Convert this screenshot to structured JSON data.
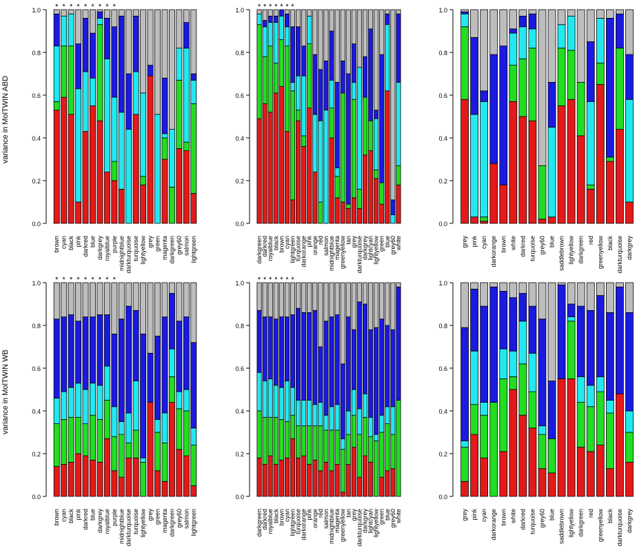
{
  "colors": {
    "red": "#e31a1a",
    "green": "#22dd22",
    "cyan": "#22e8f0",
    "blue": "#1a1ae0",
    "grey": "#bdbdbd",
    "edge": "#000000"
  },
  "ylabels": {
    "top": "variance in MolTWIN ABD",
    "bottom": "variance in MolTWIN WB"
  },
  "chart_data": [
    {
      "type": "bar",
      "stacked": true,
      "panel": "top-left",
      "ylim": [
        0,
        1
      ],
      "yticks": [
        "0.0",
        "0.2",
        "0.4",
        "0.6",
        "0.8",
        "1.0"
      ],
      "categories": [
        "brown",
        "cyan",
        "black",
        "pink",
        "darkred",
        "blue",
        "darkgrey",
        "royalblue",
        "purple",
        "midnightblue",
        "darkturquoise",
        "turquoise",
        "lightyellow",
        "grey",
        "green",
        "magenta",
        "darkgreen",
        "grey60",
        "salmon",
        "lightgreen"
      ],
      "stars": 9,
      "series": [
        {
          "color": "red",
          "values": [
            0.53,
            0.59,
            0.51,
            0.1,
            0.43,
            0.55,
            0.48,
            0.24,
            0.2,
            0.16,
            0.0,
            0.51,
            0.18,
            0.69,
            0.0,
            0.3,
            0.0,
            0.35,
            0.34,
            0.14
          ]
        },
        {
          "color": "green",
          "values": [
            0.04,
            0.24,
            0.32,
            0.0,
            0.0,
            0.0,
            0.45,
            0.0,
            0.09,
            0.0,
            0.0,
            0.0,
            0.04,
            0.0,
            0.0,
            0.1,
            0.17,
            0.32,
            0.04,
            0.42
          ]
        },
        {
          "color": "cyan",
          "values": [
            0.26,
            0.14,
            0.15,
            0.53,
            0.28,
            0.13,
            0.03,
            0.53,
            0.3,
            0.36,
            0.44,
            0.2,
            0.39,
            0.0,
            0.51,
            0.02,
            0.27,
            0.15,
            0.44,
            0.11
          ]
        },
        {
          "color": "blue",
          "values": [
            0.15,
            0.0,
            0.0,
            0.21,
            0.25,
            0.21,
            0.03,
            0.19,
            0.33,
            0.45,
            0.26,
            0.26,
            0.0,
            0.05,
            0.0,
            0.26,
            0.0,
            0.0,
            0.12,
            0.03
          ]
        },
        {
          "color": "grey",
          "values": [
            0.02,
            0.03,
            0.02,
            0.16,
            0.04,
            0.11,
            0.01,
            0.04,
            0.08,
            0.03,
            0.3,
            0.03,
            0.39,
            0.26,
            0.49,
            0.32,
            0.56,
            0.18,
            0.06,
            0.3
          ]
        }
      ]
    },
    {
      "type": "bar",
      "stacked": true,
      "panel": "top-middle",
      "ylim": [
        0,
        1
      ],
      "yticks": [
        "0.0",
        "0.2",
        "0.4",
        "0.6",
        "0.8",
        "1.0"
      ],
      "categories": [
        "darkgreen",
        "darkred",
        "royalblue",
        "black",
        "brown",
        "cyan",
        "lightgreen",
        "turquoise",
        "darkorange",
        "pink",
        "orange",
        "red",
        "salmon",
        "midnightblue",
        "magenta",
        "greenyellow",
        "tan",
        "grey",
        "darkturquoise",
        "darkgrey",
        "lightcyan",
        "lightyellow",
        "green",
        "blue",
        "grey60",
        "white"
      ],
      "stars": 7,
      "series": [
        {
          "color": "red",
          "values": [
            0.49,
            0.56,
            0.52,
            0.61,
            0.64,
            0.43,
            0.11,
            0.48,
            0.36,
            0.54,
            0.24,
            0.0,
            0.0,
            0.4,
            0.12,
            0.1,
            0.07,
            0.12,
            0.07,
            0.32,
            0.34,
            0.21,
            0.09,
            0.62,
            0.0,
            0.18
          ]
        },
        {
          "color": "green",
          "values": [
            0.44,
            0.22,
            0.31,
            0.14,
            0.22,
            0.4,
            0.51,
            0.05,
            0.05,
            0.3,
            0.0,
            0.1,
            0.0,
            0.14,
            0.1,
            0.51,
            0.02,
            0.46,
            0.09,
            0.27,
            0.14,
            0.04,
            0.1,
            0.0,
            0.0,
            0.09
          ]
        },
        {
          "color": "cyan",
          "values": [
            0.05,
            0.14,
            0.11,
            0.19,
            0.11,
            0.09,
            0.04,
            0.16,
            0.28,
            0.13,
            0.27,
            0.38,
            0.53,
            0.13,
            0.04,
            0.0,
            0.0,
            0.08,
            0.57,
            0.0,
            0.0,
            0.24,
            0.0,
            0.31,
            0.04,
            0.39
          ]
        },
        {
          "color": "blue",
          "values": [
            0.0,
            0.03,
            0.03,
            0.03,
            0.03,
            0.06,
            0.26,
            0.23,
            0.14,
            0.0,
            0.28,
            0.24,
            0.23,
            0.23,
            0.4,
            0.15,
            0.61,
            0.18,
            0.0,
            0.19,
            0.43,
            0.04,
            0.6,
            0.05,
            0.07,
            0.32
          ]
        },
        {
          "color": "grey",
          "values": [
            0.02,
            0.05,
            0.03,
            0.03,
            0.0,
            0.02,
            0.08,
            0.08,
            0.17,
            0.03,
            0.21,
            0.28,
            0.24,
            0.1,
            0.34,
            0.24,
            0.3,
            0.16,
            0.27,
            0.22,
            0.09,
            0.47,
            0.21,
            0.02,
            0.89,
            0.02
          ]
        }
      ]
    },
    {
      "type": "bar",
      "stacked": true,
      "panel": "top-right",
      "ylim": [
        0,
        1
      ],
      "yticks": [
        "0.0",
        "0.2",
        "0.4",
        "0.6",
        "0.8",
        "1.0"
      ],
      "categories": [
        "grey",
        "pink",
        "cyan",
        "darkorange",
        "brown",
        "white",
        "darkred",
        "turquoise",
        "grey60",
        "blue",
        "saddlebrown",
        "lightyellow",
        "darkgreen",
        "red",
        "greenyellow",
        "black",
        "darkturquoise",
        "darkgrey"
      ],
      "stars": 0,
      "series": [
        {
          "color": "red",
          "values": [
            0.58,
            0.03,
            0.01,
            0.28,
            0.18,
            0.57,
            0.5,
            0.48,
            0.02,
            0.03,
            0.55,
            0.58,
            0.41,
            0.16,
            0.65,
            0.29,
            0.44,
            0.1
          ]
        },
        {
          "color": "green",
          "values": [
            0.34,
            0.0,
            0.02,
            0.0,
            0.0,
            0.17,
            0.27,
            0.34,
            0.25,
            0.0,
            0.27,
            0.23,
            0.25,
            0.02,
            0.1,
            0.02,
            0.38,
            0.0
          ]
        },
        {
          "color": "cyan",
          "values": [
            0.06,
            0.48,
            0.54,
            0.0,
            0.0,
            0.15,
            0.15,
            0.09,
            0.0,
            0.42,
            0.11,
            0.16,
            0.0,
            0.39,
            0.21,
            0.0,
            0.0,
            0.48
          ]
        },
        {
          "color": "blue",
          "values": [
            0.01,
            0.36,
            0.05,
            0.51,
            0.65,
            0.02,
            0.05,
            0.07,
            0.0,
            0.21,
            0.0,
            0.0,
            0.0,
            0.28,
            0.0,
            0.65,
            0.16,
            0.21
          ]
        },
        {
          "color": "grey",
          "values": [
            0.01,
            0.13,
            0.38,
            0.21,
            0.17,
            0.09,
            0.03,
            0.02,
            0.73,
            0.34,
            0.07,
            0.03,
            0.34,
            0.15,
            0.04,
            0.04,
            0.02,
            0.21
          ]
        }
      ]
    },
    {
      "type": "bar",
      "stacked": true,
      "panel": "bottom-left",
      "ylim": [
        0,
        1
      ],
      "yticks": [
        "0.0",
        "0.2",
        "0.4",
        "0.6",
        "0.8",
        "1.0"
      ],
      "categories": [
        "brown",
        "cyan",
        "black",
        "pink",
        "darkred",
        "blue",
        "darkgrey",
        "royalblue",
        "purple",
        "midnightblue",
        "darkturquoise",
        "turquoise",
        "lightyellow",
        "grey",
        "green",
        "magenta",
        "darkgreen",
        "grey60",
        "salmon",
        "lightgreen"
      ],
      "stars": 9,
      "series": [
        {
          "color": "red",
          "values": [
            0.14,
            0.15,
            0.16,
            0.2,
            0.19,
            0.17,
            0.16,
            0.27,
            0.12,
            0.09,
            0.18,
            0.18,
            0.0,
            0.44,
            0.12,
            0.07,
            0.44,
            0.22,
            0.19,
            0.05
          ]
        },
        {
          "color": "green",
          "values": [
            0.2,
            0.21,
            0.21,
            0.17,
            0.15,
            0.21,
            0.2,
            0.18,
            0.16,
            0.2,
            0.07,
            0.13,
            0.16,
            0.0,
            0.18,
            0.18,
            0.12,
            0.19,
            0.21,
            0.19
          ]
        },
        {
          "color": "cyan",
          "values": [
            0.12,
            0.13,
            0.14,
            0.16,
            0.16,
            0.15,
            0.16,
            0.16,
            0.14,
            0.06,
            0.14,
            0.23,
            0.02,
            0.0,
            0.06,
            0.14,
            0.13,
            0.08,
            0.1,
            0.08
          ]
        },
        {
          "color": "blue",
          "values": [
            0.37,
            0.35,
            0.34,
            0.29,
            0.34,
            0.31,
            0.33,
            0.24,
            0.34,
            0.48,
            0.5,
            0.33,
            0.58,
            0.23,
            0.39,
            0.45,
            0.26,
            0.33,
            0.34,
            0.4
          ]
        },
        {
          "color": "grey",
          "values": [
            0.17,
            0.16,
            0.15,
            0.18,
            0.16,
            0.16,
            0.15,
            0.15,
            0.24,
            0.17,
            0.11,
            0.13,
            0.24,
            0.33,
            0.25,
            0.16,
            0.05,
            0.18,
            0.16,
            0.28
          ]
        }
      ]
    },
    {
      "type": "bar",
      "stacked": true,
      "panel": "bottom-middle",
      "ylim": [
        0,
        1
      ],
      "yticks": [
        "0.0",
        "0.2",
        "0.4",
        "0.6",
        "0.8",
        "1.0"
      ],
      "categories": [
        "darkgreen",
        "darkred",
        "royalblue",
        "black",
        "brown",
        "cyan",
        "lightgreen",
        "turquoise",
        "darkorange",
        "pink",
        "orange",
        "red",
        "salmon",
        "midnightblue",
        "magenta",
        "greenyellow",
        "tan",
        "grey",
        "darkturquoise",
        "darkgrey",
        "lightcyan",
        "lightyellow",
        "green",
        "blue",
        "grey60",
        "white"
      ],
      "stars": 7,
      "series": [
        {
          "color": "red",
          "values": [
            0.18,
            0.15,
            0.19,
            0.15,
            0.17,
            0.18,
            0.27,
            0.18,
            0.19,
            0.15,
            0.17,
            0.12,
            0.16,
            0.12,
            0.15,
            0.02,
            0.15,
            0.23,
            0.09,
            0.19,
            0.16,
            0.0,
            0.09,
            0.12,
            0.13,
            0.0
          ]
        },
        {
          "color": "green",
          "values": [
            0.22,
            0.22,
            0.18,
            0.22,
            0.19,
            0.17,
            0.11,
            0.15,
            0.14,
            0.18,
            0.16,
            0.21,
            0.15,
            0.19,
            0.16,
            0.2,
            0.14,
            0.15,
            0.2,
            0.18,
            0.12,
            0.26,
            0.21,
            0.22,
            0.16,
            0.45
          ]
        },
        {
          "color": "cyan",
          "values": [
            0.18,
            0.17,
            0.18,
            0.15,
            0.15,
            0.19,
            0.13,
            0.12,
            0.12,
            0.12,
            0.1,
            0.11,
            0.07,
            0.11,
            0.12,
            0.05,
            0.11,
            0.12,
            0.12,
            0.11,
            0.09,
            0.03,
            0.08,
            0.08,
            0.13,
            0.0
          ]
        },
        {
          "color": "blue",
          "values": [
            0.29,
            0.3,
            0.29,
            0.31,
            0.33,
            0.3,
            0.34,
            0.43,
            0.41,
            0.41,
            0.44,
            0.26,
            0.44,
            0.42,
            0.42,
            0.35,
            0.44,
            0.28,
            0.5,
            0.42,
            0.41,
            0.5,
            0.45,
            0.38,
            0.36,
            0.53
          ]
        },
        {
          "color": "grey",
          "values": [
            0.13,
            0.16,
            0.16,
            0.17,
            0.16,
            0.16,
            0.15,
            0.12,
            0.14,
            0.14,
            0.13,
            0.3,
            0.18,
            0.16,
            0.15,
            0.38,
            0.16,
            0.22,
            0.09,
            0.1,
            0.22,
            0.21,
            0.17,
            0.2,
            0.22,
            0.02
          ]
        }
      ]
    },
    {
      "type": "bar",
      "stacked": true,
      "panel": "bottom-right",
      "ylim": [
        0,
        1
      ],
      "yticks": [
        "0.0",
        "0.2",
        "0.4",
        "0.6",
        "0.8",
        "1.0"
      ],
      "categories": [
        "grey",
        "pink",
        "cyan",
        "darkorange",
        "brown",
        "white",
        "darkred",
        "turquoise",
        "grey60",
        "blue",
        "saddlebrown",
        "lightyellow",
        "darkgreen",
        "red",
        "greenyellow",
        "black",
        "darkturquoise",
        "darkgrey"
      ],
      "stars": 0,
      "series": [
        {
          "color": "red",
          "values": [
            0.07,
            0.29,
            0.18,
            0.0,
            0.21,
            0.5,
            0.38,
            0.32,
            0.13,
            0.11,
            0.55,
            0.55,
            0.23,
            0.21,
            0.24,
            0.13,
            0.48,
            0.16
          ]
        },
        {
          "color": "green",
          "values": [
            0.16,
            0.14,
            0.2,
            0.44,
            0.34,
            0.06,
            0.24,
            0.17,
            0.16,
            0.16,
            0.0,
            0.27,
            0.21,
            0.21,
            0.25,
            0.26,
            0.0,
            0.14
          ]
        },
        {
          "color": "cyan",
          "values": [
            0.03,
            0.25,
            0.06,
            0.0,
            0.14,
            0.12,
            0.2,
            0.18,
            0.04,
            0.0,
            0.0,
            0.02,
            0.12,
            0.1,
            0.07,
            0.06,
            0.0,
            0.1
          ]
        },
        {
          "color": "blue",
          "values": [
            0.53,
            0.29,
            0.45,
            0.54,
            0.27,
            0.25,
            0.13,
            0.22,
            0.5,
            0.27,
            0.44,
            0.06,
            0.33,
            0.35,
            0.38,
            0.41,
            0.5,
            0.46
          ]
        },
        {
          "color": "grey",
          "values": [
            0.21,
            0.03,
            0.11,
            0.02,
            0.04,
            0.07,
            0.05,
            0.11,
            0.17,
            0.46,
            0.01,
            0.1,
            0.11,
            0.13,
            0.06,
            0.14,
            0.02,
            0.14
          ]
        }
      ]
    }
  ]
}
